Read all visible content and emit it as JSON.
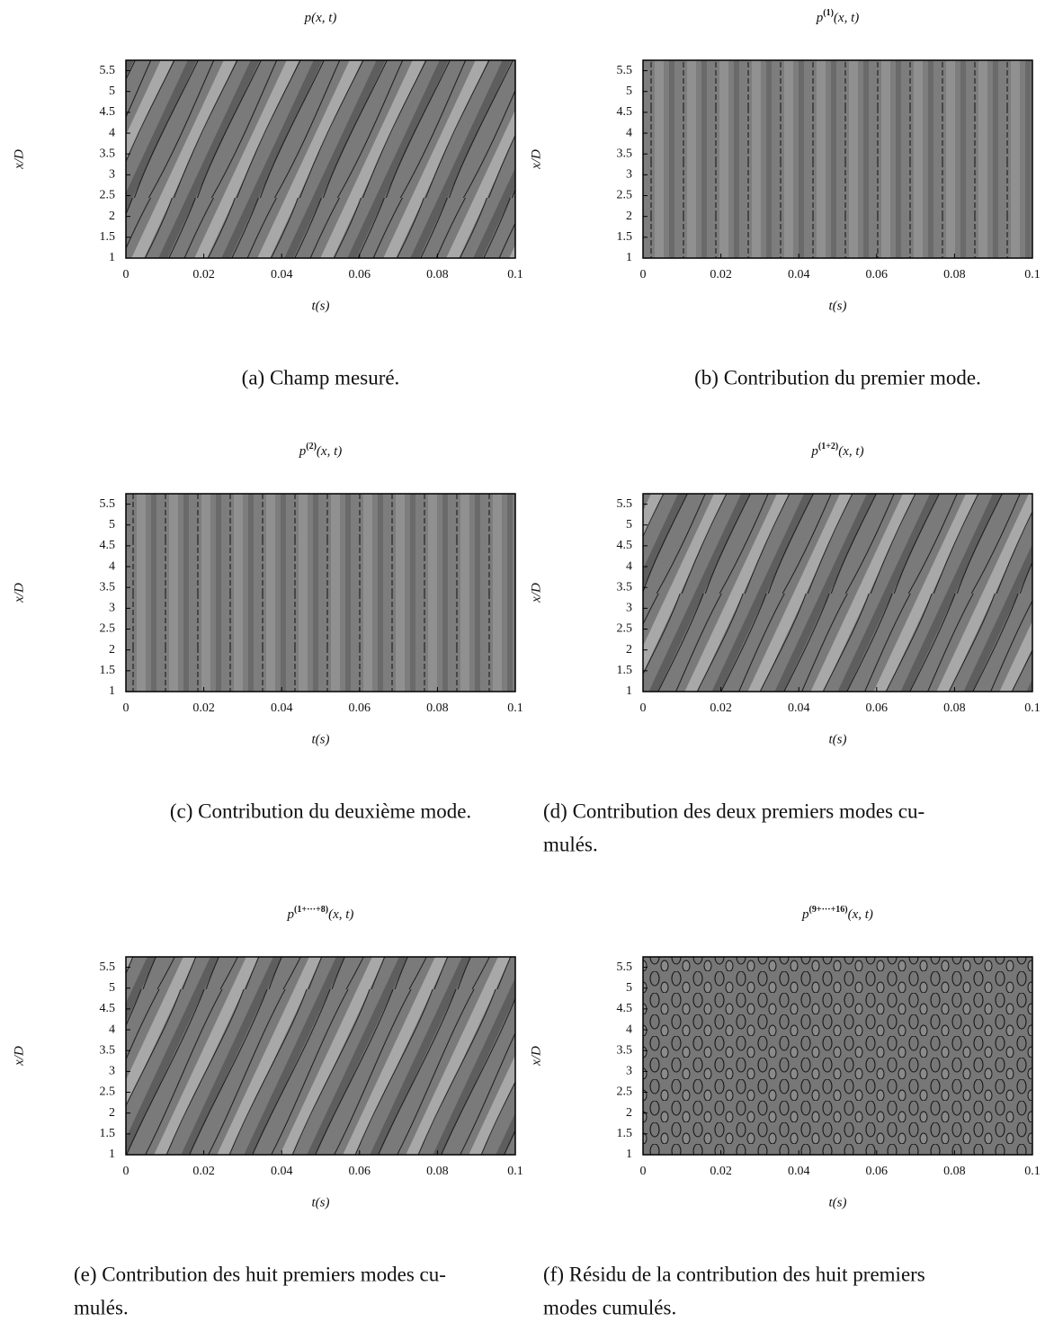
{
  "chart_data": [
    {
      "type": "heatmap",
      "title": {
        "base": "p",
        "args": "(x, t)"
      },
      "xlabel": "t(s)",
      "ylabel": "x/D",
      "xlim": [
        0,
        0.1
      ],
      "xticks": [
        0,
        0.02,
        0.04,
        0.06,
        0.08,
        0.1
      ],
      "ylim": [
        1,
        5.75
      ],
      "yticks": [
        1,
        1.5,
        2,
        2.5,
        3,
        3.5,
        4,
        4.5,
        5,
        5.5
      ],
      "caption": [
        "(a) Champ mesuré."
      ]
    },
    {
      "type": "heatmap",
      "title": {
        "base": "p",
        "sup": "(1)",
        "args": "(x, t)"
      },
      "xlabel": "t(s)",
      "ylabel": "x/D",
      "xlim": [
        0,
        0.1
      ],
      "xticks": [
        0,
        0.02,
        0.04,
        0.06,
        0.08,
        0.1
      ],
      "ylim": [
        1,
        5.75
      ],
      "yticks": [
        1,
        1.5,
        2,
        2.5,
        3,
        3.5,
        4,
        4.5,
        5,
        5.5
      ],
      "caption": [
        "(b) Contribution du premier mode."
      ]
    },
    {
      "type": "heatmap",
      "title": {
        "base": "p",
        "sup": "(2)",
        "args": "(x, t)"
      },
      "xlabel": "t(s)",
      "ylabel": "x/D",
      "xlim": [
        0,
        0.1
      ],
      "xticks": [
        0,
        0.02,
        0.04,
        0.06,
        0.08,
        0.1
      ],
      "ylim": [
        1,
        5.75
      ],
      "yticks": [
        1,
        1.5,
        2,
        2.5,
        3,
        3.5,
        4,
        4.5,
        5,
        5.5
      ],
      "caption": [
        "(c) Contribution du deuxième mode."
      ]
    },
    {
      "type": "heatmap",
      "title": {
        "base": "p",
        "sup": "(1+2)",
        "args": "(x, t)"
      },
      "xlabel": "t(s)",
      "ylabel": "x/D",
      "xlim": [
        0,
        0.1
      ],
      "xticks": [
        0,
        0.02,
        0.04,
        0.06,
        0.08,
        0.1
      ],
      "ylim": [
        1,
        5.75
      ],
      "yticks": [
        1,
        1.5,
        2,
        2.5,
        3,
        3.5,
        4,
        4.5,
        5,
        5.5
      ],
      "caption": [
        "(d) Contribution des deux premiers modes cu-",
        "mulés."
      ]
    },
    {
      "type": "heatmap",
      "title": {
        "base": "p",
        "sup": "(1+···+8)",
        "args": "(x, t)"
      },
      "xlabel": "t(s)",
      "ylabel": "x/D",
      "xlim": [
        0,
        0.1
      ],
      "xticks": [
        0,
        0.02,
        0.04,
        0.06,
        0.08,
        0.1
      ],
      "ylim": [
        1,
        5.75
      ],
      "yticks": [
        1,
        1.5,
        2,
        2.5,
        3,
        3.5,
        4,
        4.5,
        5,
        5.5
      ],
      "caption": [
        "(e) Contribution des huit premiers modes cu-",
        "mulés."
      ]
    },
    {
      "type": "heatmap",
      "title": {
        "base": "p",
        "sup": "(9+···+16)",
        "args": "(x, t)"
      },
      "xlabel": "t(s)",
      "ylabel": "x/D",
      "xlim": [
        0,
        0.1
      ],
      "xticks": [
        0,
        0.02,
        0.04,
        0.06,
        0.08,
        0.1
      ],
      "ylim": [
        1,
        5.75
      ],
      "yticks": [
        1,
        1.5,
        2,
        2.5,
        3,
        3.5,
        4,
        4.5,
        5,
        5.5
      ],
      "caption": [
        "(f) Résidu de la contribution des huit premiers",
        "modes cumulés."
      ]
    }
  ]
}
